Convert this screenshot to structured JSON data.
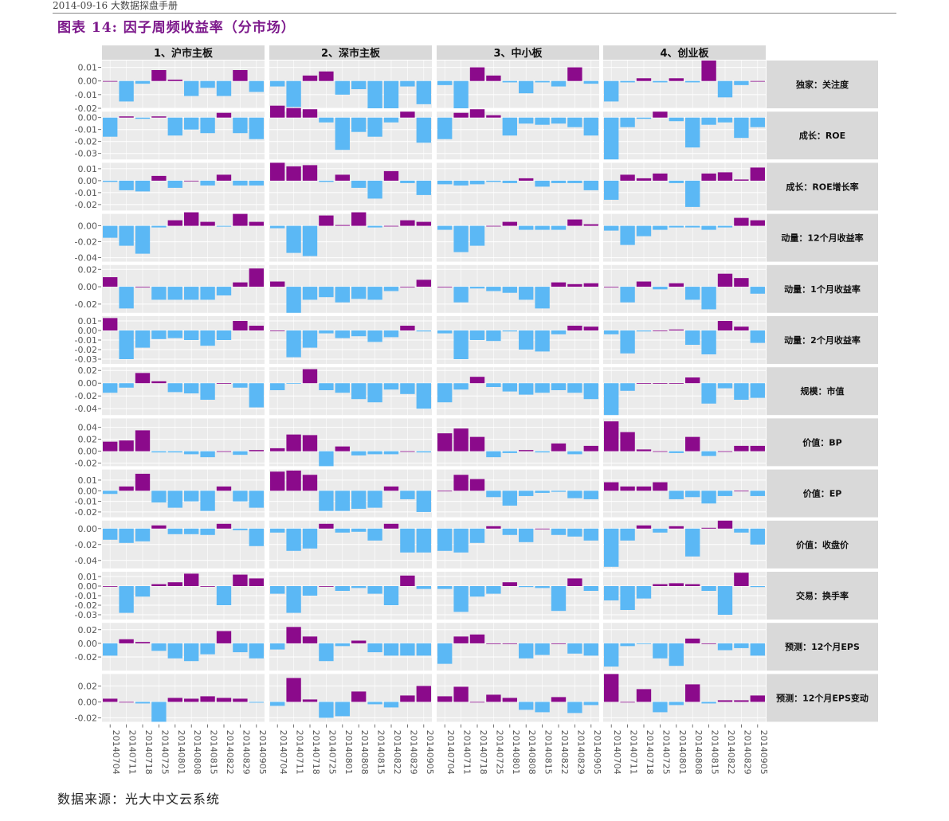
{
  "header": {
    "top_text": "2014-09-16 大数据探盘手册",
    "figure_title": "图表 14: 因子周频收益率（分市场）"
  },
  "footer": {
    "source": "数据来源：光大中文云系统"
  },
  "colors": {
    "positive": "#8b0a8b",
    "negative": "#5bb8f5",
    "panel_bg": "#ebebeb",
    "strip_bg": "#d9d9d9",
    "grid": "#ffffff"
  },
  "chart_data": {
    "type": "bar",
    "layout": "facet_grid",
    "categories": [
      "20140704",
      "20140711",
      "20140718",
      "20140725",
      "20140801",
      "20140808",
      "20140815",
      "20140822",
      "20140829",
      "20140905"
    ],
    "columns": [
      "1、沪市主板",
      "2、深市主板",
      "3、中小板",
      "4、创业板"
    ],
    "rows": [
      {
        "label": "独家：关注度",
        "ylim": [
          -0.02,
          0.015
        ],
        "ticks": [
          0.01,
          0.0,
          -0.01,
          -0.02
        ],
        "tick_labels": [
          "0.01",
          "0.00",
          "-0.01",
          "-0.02"
        ],
        "values": [
          [
            0,
            -0.015,
            -0.002,
            0.008,
            0.001,
            -0.011,
            -0.005,
            -0.011,
            0.008,
            -0.008
          ],
          [
            -0.004,
            -0.019,
            0.004,
            0.007,
            -0.01,
            -0.006,
            -0.02,
            -0.02,
            -0.004,
            -0.017
          ],
          [
            -0.003,
            -0.02,
            0.01,
            0.004,
            -0.001,
            -0.009,
            -0.001,
            -0.004,
            0.01,
            -0.002
          ],
          [
            -0.015,
            -0.001,
            0.002,
            -0.001,
            0.002,
            -0.001,
            0.015,
            -0.012,
            -0.003,
            0
          ]
        ]
      },
      {
        "label": "成长：ROE",
        "ylim": [
          -0.035,
          0.005
        ],
        "ticks": [
          0.01,
          0.0,
          -0.01,
          -0.02,
          -0.03
        ],
        "tick_labels": [
          "0.01",
          "0.00",
          "-0.01",
          "-0.02",
          "-0.03"
        ],
        "values": [
          [
            -0.016,
            0.001,
            -0.001,
            0.001,
            -0.015,
            -0.01,
            -0.013,
            0.004,
            -0.013,
            -0.018
          ],
          [
            0.01,
            0.008,
            0.007,
            -0.004,
            -0.027,
            -0.012,
            -0.016,
            -0.004,
            0.005,
            -0.021
          ],
          [
            -0.018,
            0.004,
            0.007,
            0.002,
            -0.015,
            -0.005,
            -0.006,
            -0.005,
            -0.008,
            -0.015
          ],
          [
            -0.035,
            -0.008,
            -0.001,
            0.005,
            -0.003,
            -0.025,
            -0.006,
            -0.004,
            -0.017,
            -0.008
          ]
        ]
      },
      {
        "label": "成长：ROE增长率",
        "ylim": [
          -0.025,
          0.015
        ],
        "ticks": [
          0.01,
          0.0,
          -0.01,
          -0.02
        ],
        "tick_labels": [
          "0.01",
          "0.00",
          "-0.01",
          "-0.02"
        ],
        "values": [
          [
            -0.001,
            -0.008,
            -0.009,
            0.004,
            -0.006,
            0,
            -0.004,
            0.005,
            -0.004,
            -0.004
          ],
          [
            0.015,
            0.012,
            0.013,
            -0.001,
            0.005,
            -0.006,
            -0.015,
            0.008,
            -0.002,
            -0.012
          ],
          [
            -0.003,
            -0.004,
            -0.003,
            -0.001,
            -0.002,
            0.002,
            -0.005,
            -0.002,
            -0.002,
            -0.008
          ],
          [
            -0.016,
            0.005,
            0.002,
            0.006,
            -0.002,
            -0.022,
            0.006,
            0.007,
            0.001,
            0.011
          ]
        ]
      },
      {
        "label": "动量：12个月收益率",
        "ylim": [
          -0.045,
          0.015
        ],
        "ticks": [
          0.0,
          -0.02,
          -0.04
        ],
        "tick_labels": [
          "0.00",
          "-0.02",
          "-0.04"
        ],
        "values": [
          [
            -0.015,
            -0.025,
            -0.035,
            -0.002,
            0.007,
            0.017,
            0.005,
            -0.001,
            0.015,
            0.005
          ],
          [
            -0.003,
            -0.034,
            -0.038,
            0.013,
            0.001,
            0.017,
            -0.002,
            0,
            0.007,
            0.005
          ],
          [
            -0.005,
            -0.033,
            -0.025,
            0,
            0.005,
            -0.005,
            -0.005,
            -0.005,
            0.008,
            0.002
          ],
          [
            -0.006,
            -0.024,
            -0.013,
            -0.005,
            -0.002,
            -0.002,
            -0.005,
            -0.002,
            0.01,
            0.007
          ]
        ]
      },
      {
        "label": "动量：1个月收益率",
        "ylim": [
          -0.03,
          0.025
        ],
        "ticks": [
          0.02,
          0.0,
          -0.02
        ],
        "tick_labels": [
          "0.02",
          "0.00",
          "-0.02"
        ],
        "values": [
          [
            0.011,
            -0.025,
            0,
            -0.015,
            -0.015,
            -0.015,
            -0.015,
            -0.01,
            0.005,
            0.021
          ],
          [
            0.006,
            -0.03,
            -0.015,
            -0.012,
            -0.018,
            -0.014,
            -0.015,
            -0.005,
            0,
            0.008
          ],
          [
            0,
            -0.018,
            -0.002,
            -0.005,
            -0.007,
            -0.015,
            -0.025,
            0.005,
            0.003,
            0.004
          ],
          [
            0,
            -0.018,
            0.006,
            -0.003,
            0.004,
            -0.015,
            -0.026,
            0.015,
            0.01,
            -0.008
          ]
        ]
      },
      {
        "label": "动量：2个月收益率",
        "ylim": [
          -0.035,
          0.015
        ],
        "ticks": [
          0.01,
          0.0,
          -0.01,
          -0.02,
          -0.03
        ],
        "tick_labels": [
          "0.01",
          "0.00",
          "-0.01",
          "-0.02",
          "-0.03"
        ],
        "values": [
          [
            0.013,
            -0.03,
            -0.018,
            -0.009,
            -0.008,
            -0.01,
            -0.016,
            -0.01,
            0.01,
            0.005
          ],
          [
            0,
            -0.028,
            -0.018,
            -0.003,
            -0.008,
            -0.006,
            -0.012,
            -0.007,
            0.005,
            -0.001
          ],
          [
            -0.003,
            -0.03,
            -0.01,
            -0.011,
            -0.001,
            -0.02,
            -0.022,
            -0.004,
            0.005,
            0.004
          ],
          [
            -0.004,
            -0.024,
            -0.001,
            0,
            0.001,
            -0.015,
            -0.025,
            0.01,
            0.004,
            -0.013
          ]
        ]
      },
      {
        "label": "规模：市值",
        "ylim": [
          -0.05,
          0.025
        ],
        "ticks": [
          0.02,
          0.0,
          -0.02,
          -0.04
        ],
        "tick_labels": [
          "0.02",
          "0.00",
          "-0.02",
          "-0.04"
        ],
        "values": [
          [
            -0.015,
            -0.007,
            0.016,
            0.003,
            -0.014,
            -0.016,
            -0.026,
            0,
            -0.007,
            -0.038
          ],
          [
            -0.011,
            -0.001,
            0.022,
            -0.011,
            -0.015,
            -0.025,
            -0.03,
            -0.01,
            -0.017,
            -0.04
          ],
          [
            -0.03,
            -0.01,
            0.01,
            -0.006,
            -0.013,
            -0.018,
            -0.015,
            -0.011,
            -0.015,
            -0.025
          ],
          [
            -0.05,
            -0.012,
            0,
            0,
            0,
            0.009,
            -0.032,
            -0.008,
            -0.026,
            -0.023
          ]
        ]
      },
      {
        "label": "价值：BP",
        "ylim": [
          -0.025,
          0.055
        ],
        "ticks": [
          0.04,
          0.02,
          0.0,
          -0.02
        ],
        "tick_labels": [
          "0.04",
          "0.02",
          "0.00",
          "-0.02"
        ],
        "values": [
          [
            0.016,
            0.018,
            0.035,
            -0.002,
            -0.002,
            -0.005,
            -0.01,
            0,
            -0.006,
            0.002
          ],
          [
            0.005,
            0.028,
            0.027,
            -0.025,
            0.008,
            -0.007,
            -0.005,
            -0.005,
            0,
            -0.002
          ],
          [
            0.03,
            0.038,
            0.024,
            -0.01,
            -0.003,
            0.002,
            -0.002,
            0.013,
            -0.005,
            0.009
          ],
          [
            0.05,
            0.032,
            0.003,
            0,
            -0.003,
            0.024,
            -0.008,
            0,
            0.009,
            0.009
          ]
        ]
      },
      {
        "label": "价值：EP",
        "ylim": [
          -0.025,
          0.02
        ],
        "ticks": [
          0.01,
          0.0,
          -0.01,
          -0.02
        ],
        "tick_labels": [
          "0.01",
          "0.00",
          "-0.01",
          "-0.02"
        ],
        "values": [
          [
            -0.003,
            0.004,
            0.016,
            -0.011,
            -0.016,
            -0.01,
            -0.019,
            0.004,
            -0.01,
            -0.016
          ],
          [
            0.018,
            0.019,
            0.015,
            -0.019,
            -0.019,
            -0.017,
            -0.016,
            0.004,
            -0.008,
            -0.02
          ],
          [
            0,
            0.015,
            0.011,
            -0.006,
            -0.014,
            -0.005,
            -0.002,
            -0.001,
            -0.007,
            -0.008
          ],
          [
            0.008,
            0.004,
            0.004,
            0.008,
            -0.008,
            -0.006,
            -0.012,
            -0.005,
            0,
            -0.005
          ]
        ]
      },
      {
        "label": "价值：收盘价",
        "ylim": [
          -0.05,
          0.01
        ],
        "ticks": [
          0.0,
          -0.02,
          -0.04
        ],
        "tick_labels": [
          "0.00",
          "-0.02",
          "-0.04"
        ],
        "values": [
          [
            -0.014,
            -0.018,
            -0.016,
            0.004,
            -0.007,
            -0.007,
            -0.008,
            0.006,
            -0.002,
            -0.022
          ],
          [
            -0.005,
            -0.028,
            -0.025,
            0.006,
            -0.005,
            -0.004,
            -0.015,
            0.006,
            -0.03,
            -0.03
          ],
          [
            -0.028,
            -0.03,
            -0.018,
            0.003,
            -0.008,
            -0.017,
            0,
            -0.008,
            -0.01,
            -0.015
          ],
          [
            -0.048,
            -0.015,
            0.004,
            -0.005,
            0.003,
            -0.035,
            0.001,
            0.01,
            -0.005,
            -0.02
          ]
        ]
      },
      {
        "label": "交易：换手率",
        "ylim": [
          -0.035,
          0.015
        ],
        "ticks": [
          0.01,
          0.0,
          -0.01,
          -0.02,
          -0.03
        ],
        "tick_labels": [
          "0.01",
          "0.00",
          "-0.01",
          "-0.02",
          "-0.03"
        ],
        "values": [
          [
            0,
            -0.028,
            -0.011,
            0.002,
            0.004,
            0.013,
            0,
            -0.02,
            0.012,
            0.008
          ],
          [
            -0.008,
            -0.028,
            -0.01,
            0,
            -0.005,
            -0.002,
            -0.008,
            -0.02,
            0.011,
            -0.003
          ],
          [
            -0.003,
            -0.027,
            -0.011,
            -0.008,
            0.004,
            -0.001,
            -0.002,
            -0.026,
            0.008,
            -0.005
          ],
          [
            -0.015,
            -0.025,
            -0.013,
            0.002,
            0.003,
            0.002,
            -0.005,
            -0.03,
            0.014,
            -0.001
          ]
        ]
      },
      {
        "label": "预测：12个月EPS",
        "ylim": [
          -0.04,
          0.03
        ],
        "ticks": [
          0.02,
          0.0,
          -0.02
        ],
        "tick_labels": [
          "0.02",
          "0.00",
          "-0.02"
        ],
        "values": [
          [
            -0.018,
            0.006,
            0.002,
            -0.011,
            -0.022,
            -0.026,
            -0.016,
            0.018,
            -0.013,
            -0.022
          ],
          [
            -0.009,
            0.024,
            0.01,
            -0.026,
            -0.004,
            0.004,
            -0.013,
            -0.018,
            -0.018,
            -0.018
          ],
          [
            -0.03,
            0.01,
            0.013,
            0,
            0,
            -0.022,
            -0.017,
            0,
            -0.015,
            -0.018
          ],
          [
            -0.034,
            -0.004,
            -0.001,
            -0.022,
            -0.033,
            0.007,
            0,
            -0.01,
            -0.007,
            -0.018
          ]
        ]
      },
      {
        "label": "预测：12个月EPS变动",
        "ylim": [
          -0.025,
          0.035
        ],
        "ticks": [
          0.02,
          0.0,
          -0.02
        ],
        "tick_labels": [
          "0.02",
          "0.00",
          "-0.02"
        ],
        "values": [
          [
            0.004,
            0,
            -0.002,
            -0.025,
            0.005,
            0.004,
            0.007,
            0.005,
            0.004,
            -0.001
          ],
          [
            -0.005,
            0.03,
            0.003,
            -0.02,
            -0.018,
            0.013,
            -0.003,
            -0.007,
            0.008,
            0.02
          ],
          [
            0.007,
            0.019,
            0,
            0.009,
            0.005,
            -0.01,
            -0.013,
            0.006,
            -0.014,
            -0.004
          ],
          [
            0.035,
            0,
            0.016,
            -0.013,
            -0.004,
            0.022,
            -0.002,
            0.002,
            0.002,
            0.008
          ]
        ]
      }
    ]
  }
}
